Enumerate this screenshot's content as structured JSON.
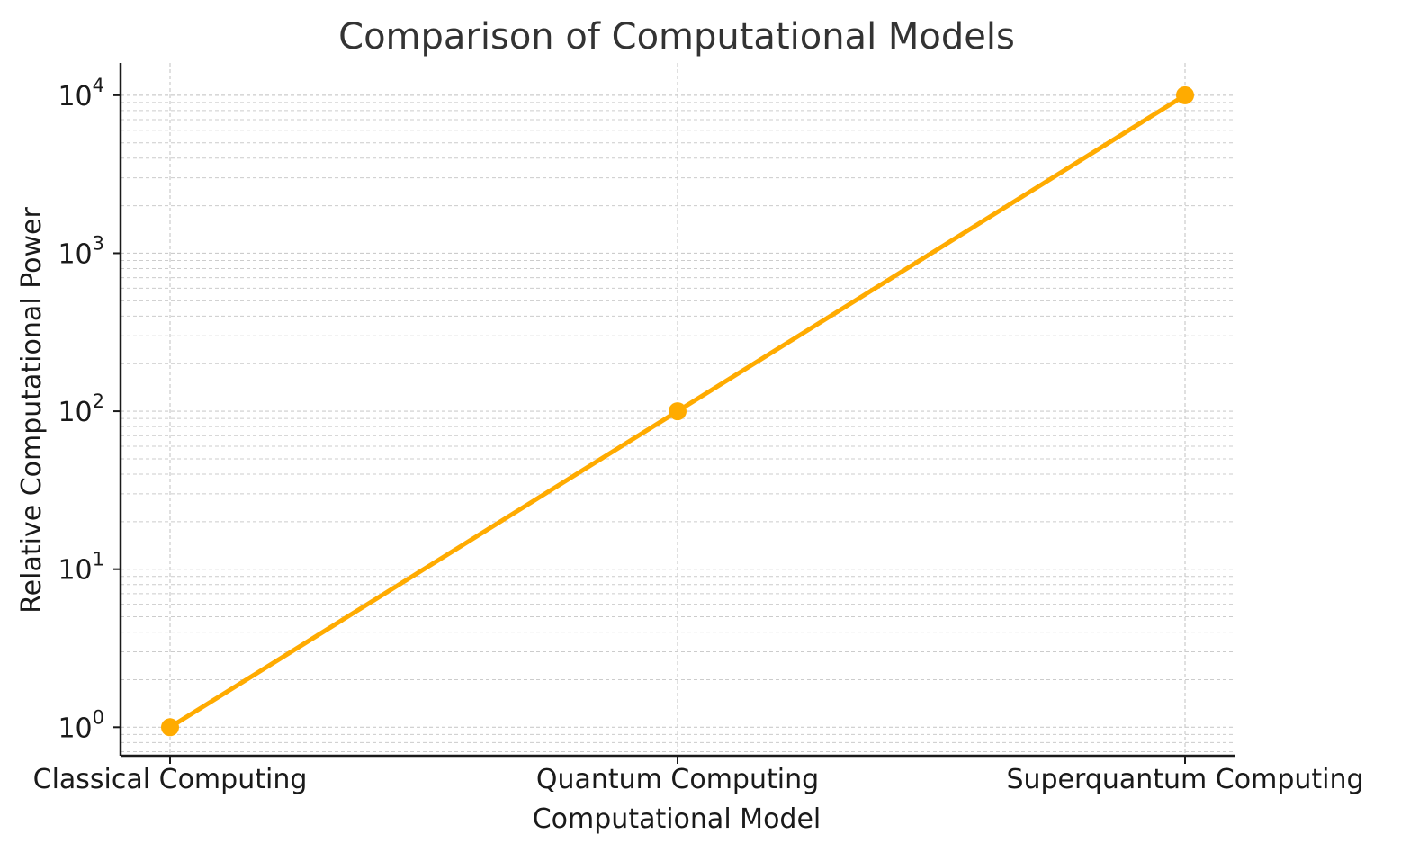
{
  "chart_data": {
    "type": "line",
    "title": "Comparison of Computational Models",
    "xlabel": "Computational Model",
    "ylabel": "Relative Computational Power",
    "categories": [
      "Classical Computing",
      "Quantum Computing",
      "Superquantum Computing"
    ],
    "series": [
      {
        "values": [
          1,
          100,
          10000
        ],
        "color": "#ffab00",
        "marker": "circle"
      }
    ],
    "y_scale": "log",
    "ylim": [
      0.66,
      16000
    ],
    "y_ticks": [
      {
        "value": 1,
        "base": "10",
        "exp": "0"
      },
      {
        "value": 10,
        "base": "10",
        "exp": "1"
      },
      {
        "value": 100,
        "base": "10",
        "exp": "2"
      },
      {
        "value": 1000,
        "base": "10",
        "exp": "3"
      },
      {
        "value": 10000,
        "base": "10",
        "exp": "4"
      }
    ],
    "grid": true,
    "grid_color": "#cccccc",
    "axis_color": "#1a1a1a"
  }
}
